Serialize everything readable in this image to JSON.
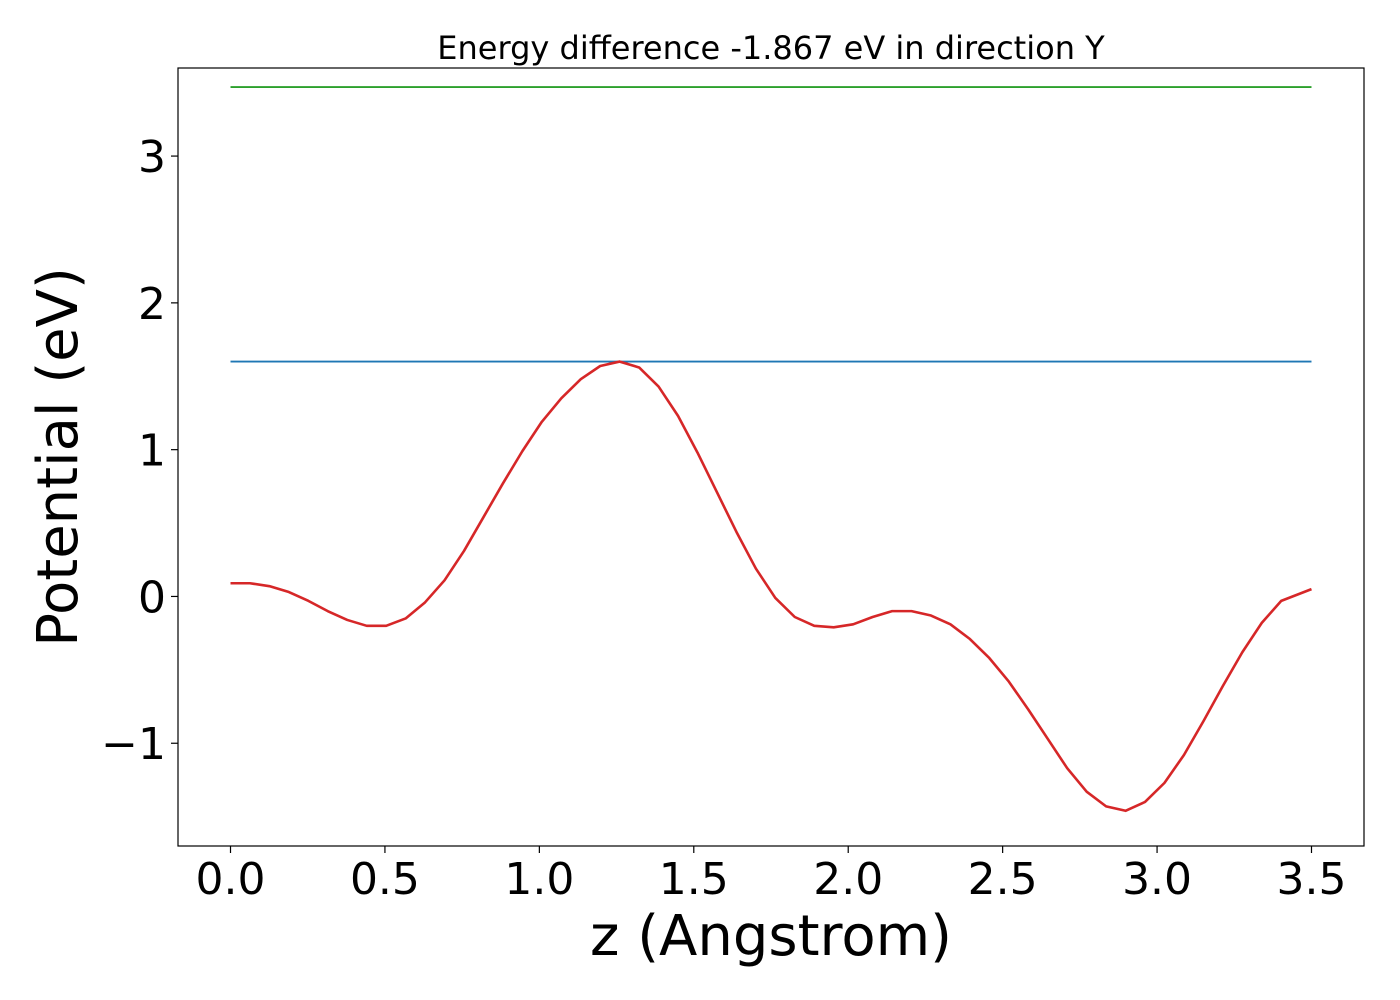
{
  "chart_data": {
    "type": "line",
    "title": "Energy difference -1.867 eV in direction Y",
    "xlabel": "z (Angstrom)",
    "ylabel": "Potential (eV)",
    "xlim": [
      -0.17,
      3.67
    ],
    "ylim": [
      -1.7,
      3.6
    ],
    "xticks": [
      0.0,
      0.5,
      1.0,
      1.5,
      2.0,
      2.5,
      3.0,
      3.5
    ],
    "xtick_labels": [
      "0.0",
      "0.5",
      "1.0",
      "1.5",
      "2.0",
      "2.5",
      "3.0",
      "3.5"
    ],
    "yticks": [
      -1,
      0,
      1,
      2,
      3
    ],
    "ytick_labels": [
      "−1",
      "0",
      "1",
      "2",
      "3"
    ],
    "grid": false,
    "series": [
      {
        "color": "#2ca02c",
        "x": [
          0.0,
          3.5
        ],
        "y": [
          3.47,
          3.47
        ]
      },
      {
        "color": "#1f77b4",
        "x": [
          0.0,
          3.5
        ],
        "y": [
          1.6,
          1.6
        ]
      },
      {
        "color": "#d62728",
        "x": [
          0.0,
          0.063,
          0.126,
          0.189,
          0.252,
          0.315,
          0.378,
          0.441,
          0.504,
          0.567,
          0.63,
          0.693,
          0.756,
          0.819,
          0.882,
          0.945,
          1.008,
          1.071,
          1.134,
          1.197,
          1.26,
          1.323,
          1.386,
          1.449,
          1.512,
          1.575,
          1.638,
          1.701,
          1.764,
          1.827,
          1.89,
          1.953,
          2.016,
          2.079,
          2.142,
          2.205,
          2.268,
          2.331,
          2.394,
          2.457,
          2.52,
          2.583,
          2.646,
          2.709,
          2.772,
          2.835,
          2.898,
          2.961,
          3.024,
          3.087,
          3.15,
          3.213,
          3.276,
          3.339,
          3.402,
          3.5
        ],
        "y": [
          0.09,
          0.09,
          0.07,
          0.03,
          -0.03,
          -0.1,
          -0.16,
          -0.2,
          -0.2,
          -0.15,
          -0.04,
          0.11,
          0.31,
          0.54,
          0.77,
          0.99,
          1.19,
          1.35,
          1.48,
          1.57,
          1.6,
          1.56,
          1.43,
          1.23,
          0.98,
          0.71,
          0.44,
          0.19,
          -0.01,
          -0.14,
          -0.2,
          -0.21,
          -0.19,
          -0.14,
          -0.1,
          -0.1,
          -0.13,
          -0.19,
          -0.29,
          -0.42,
          -0.58,
          -0.77,
          -0.97,
          -1.17,
          -1.33,
          -1.43,
          -1.46,
          -1.4,
          -1.27,
          -1.08,
          -0.85,
          -0.61,
          -0.38,
          -0.18,
          -0.03,
          0.05
        ]
      }
    ]
  }
}
